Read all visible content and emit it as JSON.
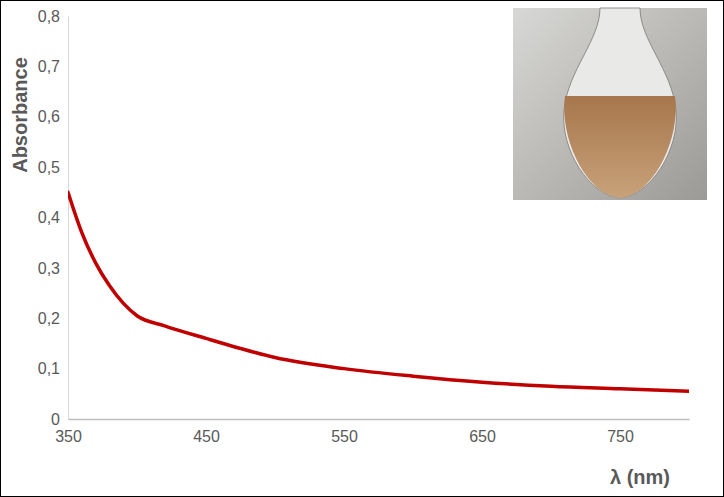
{
  "chart_data": {
    "type": "line",
    "x_label": "λ (nm)",
    "y_label": "Absorbance",
    "x": [
      350,
      360,
      370,
      380,
      390,
      400,
      420,
      450,
      475,
      500,
      550,
      600,
      650,
      700,
      750,
      800
    ],
    "values": [
      0.45,
      0.37,
      0.31,
      0.265,
      0.23,
      0.205,
      0.185,
      0.16,
      0.14,
      0.122,
      0.1,
      0.085,
      0.073,
      0.065,
      0.06,
      0.055
    ],
    "color": "#c00000",
    "xlim": [
      350,
      800
    ],
    "xticks": [
      350,
      450,
      550,
      650,
      750
    ],
    "ylim": [
      0,
      0.8
    ],
    "yticks": [
      0,
      {
        "value": 0.1,
        "label": "0,1"
      },
      {
        "value": 0.2,
        "label": "0,2"
      },
      {
        "value": 0.3,
        "label": "0,3"
      },
      {
        "value": 0.4,
        "label": "0,4"
      },
      {
        "value": 0.5,
        "label": "0,5"
      },
      {
        "value": 0.6,
        "label": "0,6"
      },
      {
        "value": 0.7,
        "label": "0,7"
      },
      {
        "value": 0.8,
        "label": "0,8"
      }
    ],
    "grid": false
  }
}
